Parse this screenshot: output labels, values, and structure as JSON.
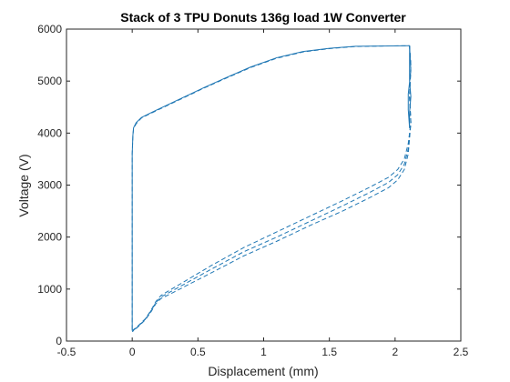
{
  "chart_data": {
    "type": "line",
    "title": "Stack of 3 TPU Donuts 136g load 1W Converter",
    "xlabel": "Displacement (mm)",
    "ylabel": "Voltage (V)",
    "xlim": [
      -0.5,
      2.5
    ],
    "ylim": [
      0,
      6000
    ],
    "xticks": [
      -0.5,
      0,
      0.5,
      1,
      1.5,
      2,
      2.5
    ],
    "xtick_labels": [
      "-0.5",
      "0",
      "0.5",
      "1",
      "1.5",
      "2",
      "2.5"
    ],
    "yticks": [
      0,
      1000,
      2000,
      3000,
      4000,
      5000,
      6000
    ],
    "ytick_labels": [
      "0",
      "1000",
      "2000",
      "3000",
      "4000",
      "5000",
      "6000"
    ],
    "grid": false,
    "box": true,
    "colors": {
      "line": "#1f77b4",
      "axis": "#262626"
    },
    "series": [
      {
        "style": "solid",
        "x": [
          2.11,
          2.11,
          2.11,
          2.11,
          2.12,
          2.11,
          2.11,
          2.11,
          2.1,
          2.1,
          2.12,
          2.11
        ],
        "y": [
          5680,
          5500,
          5300,
          5000,
          4700,
          4400,
          4200,
          4100,
          4450,
          4750,
          5200,
          5680
        ]
      },
      {
        "style": "dashed",
        "x": [
          2.11,
          2.12,
          2.11,
          2.12,
          2.1,
          2.07,
          2.02,
          1.95,
          1.8,
          1.6,
          1.35,
          1.1,
          0.85,
          0.6,
          0.4,
          0.3,
          0.22,
          0.18,
          0.14,
          0.1,
          0.06,
          0.03,
          0.01,
          0.0
        ],
        "y": [
          5680,
          5300,
          4700,
          4200,
          3800,
          3500,
          3300,
          3150,
          2950,
          2700,
          2400,
          2100,
          1800,
          1450,
          1150,
          1000,
          880,
          760,
          580,
          430,
          330,
          260,
          220,
          200
        ]
      },
      {
        "style": "dashed",
        "x": [
          2.11,
          2.12,
          2.11,
          2.12,
          2.1,
          2.07,
          2.02,
          1.95,
          1.8,
          1.6,
          1.35,
          1.1,
          0.85,
          0.6,
          0.4,
          0.3,
          0.22,
          0.18,
          0.14,
          0.1,
          0.06,
          0.03,
          0.01,
          0.0
        ],
        "y": [
          5680,
          5300,
          4700,
          4200,
          3700,
          3400,
          3200,
          3050,
          2850,
          2600,
          2300,
          2000,
          1720,
          1380,
          1100,
          960,
          850,
          740,
          570,
          420,
          320,
          250,
          210,
          190
        ]
      },
      {
        "style": "dashed",
        "x": [
          2.11,
          2.12,
          2.11,
          2.12,
          2.1,
          2.07,
          2.02,
          1.95,
          1.8,
          1.6,
          1.35,
          1.1,
          0.85,
          0.6,
          0.4,
          0.3,
          0.22,
          0.18,
          0.14,
          0.1,
          0.06,
          0.03,
          0.01,
          0.0
        ],
        "y": [
          5680,
          5300,
          4700,
          4200,
          3600,
          3300,
          3100,
          2950,
          2750,
          2500,
          2220,
          1920,
          1640,
          1310,
          1050,
          920,
          820,
          720,
          550,
          410,
          310,
          240,
          200,
          180
        ]
      },
      {
        "style": "solid",
        "x": [
          0.0,
          0.0,
          0.0,
          0.005,
          0.01,
          0.03,
          0.07,
          0.15,
          0.25,
          0.4,
          0.55,
          0.7,
          0.9,
          1.1,
          1.3,
          1.5,
          1.7,
          1.9,
          2.11
        ],
        "y": [
          200,
          1500,
          3600,
          3950,
          4100,
          4200,
          4300,
          4400,
          4520,
          4700,
          4880,
          5050,
          5270,
          5450,
          5570,
          5630,
          5670,
          5675,
          5680
        ]
      },
      {
        "style": "dashed",
        "x": [
          0.0,
          0.0,
          0.0,
          0.005,
          0.01,
          0.03,
          0.07,
          0.15,
          0.25,
          0.4,
          0.55,
          0.7,
          0.9,
          1.1,
          1.3,
          1.5,
          1.7,
          1.9,
          2.11
        ],
        "y": [
          220,
          1500,
          3600,
          3940,
          4080,
          4180,
          4290,
          4390,
          4510,
          4690,
          4870,
          5040,
          5260,
          5440,
          5560,
          5625,
          5665,
          5675,
          5680
        ]
      }
    ]
  }
}
